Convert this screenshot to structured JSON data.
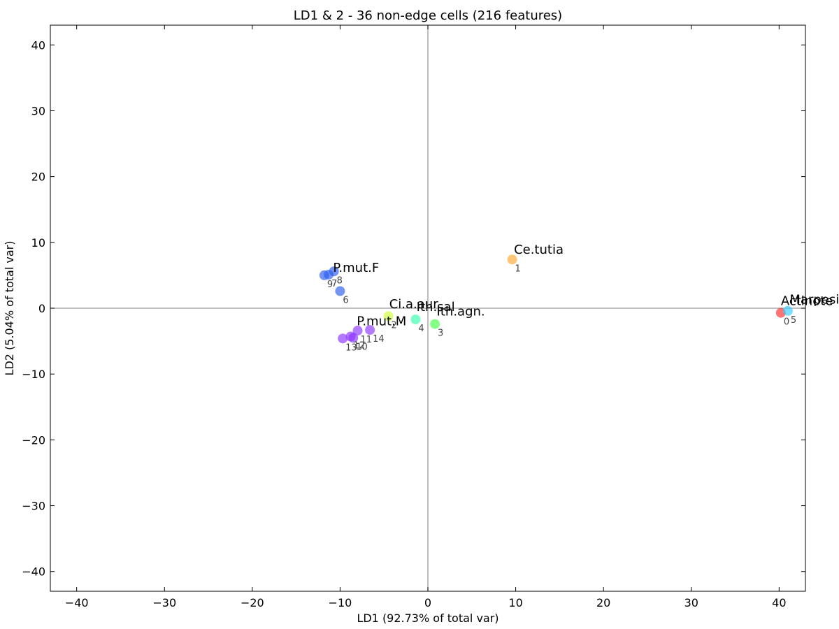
{
  "chart_data": {
    "type": "scatter",
    "title": "LD1 & 2 - 36 non-edge cells (216 features)",
    "xlabel": "LD1 (92.73% of total var)",
    "ylabel": "LD2 (5.04% of total var)",
    "xlim": [
      -43,
      43
    ],
    "ylim": [
      -43,
      43
    ],
    "xticks": [
      -40,
      -30,
      -20,
      -10,
      0,
      10,
      20,
      30,
      40
    ],
    "yticks": [
      -40,
      -30,
      -20,
      -10,
      0,
      10,
      20,
      30,
      40
    ],
    "tick_labels": {
      "x": [
        "−40",
        "−30",
        "−20",
        "−10",
        "0",
        "10",
        "20",
        "30",
        "40"
      ],
      "y": [
        "−40",
        "−30",
        "−20",
        "−10",
        "0",
        "10",
        "20",
        "30",
        "40"
      ]
    },
    "zero_lines": true,
    "grid": false,
    "groups": [
      {
        "name": "Actinote",
        "color": "#ff2a2a",
        "label_pos": [
          40.2,
          0.5
        ],
        "points": [
          {
            "id": "0",
            "x": 40.2,
            "y": -0.7
          }
        ]
      },
      {
        "name": "Ce.tutia",
        "color": "#ffa733",
        "label_pos": [
          9.8,
          8.3
        ],
        "points": [
          {
            "id": "1",
            "x": 9.6,
            "y": 7.4
          }
        ]
      },
      {
        "name": "Ci.a.aur",
        "color": "#ccff33",
        "label_pos": [
          -4.4,
          0.0
        ],
        "points": [
          {
            "id": "2",
            "x": -4.5,
            "y": -1.2
          }
        ]
      },
      {
        "name": "Ith.agn.",
        "color": "#44ff44",
        "label_pos": [
          1.0,
          -1.1
        ],
        "points": [
          {
            "id": "3",
            "x": 0.8,
            "y": -2.4
          }
        ]
      },
      {
        "name": "Ith.sal",
        "color": "#33ffaa",
        "label_pos": [
          -1.3,
          -0.4
        ],
        "points": [
          {
            "id": "4",
            "x": -1.4,
            "y": -1.7
          }
        ]
      },
      {
        "name": "Marpesia",
        "color": "#33ccff",
        "label_pos": [
          41.2,
          0.7
        ],
        "points": [
          {
            "id": "5",
            "x": 41.0,
            "y": -0.4
          }
        ]
      },
      {
        "name": "P.mut.F",
        "color": "#2a5aee",
        "label_pos": [
          -10.8,
          5.5
        ],
        "points": [
          {
            "id": "6",
            "x": -10.0,
            "y": 2.6
          },
          {
            "id": "7",
            "x": -11.3,
            "y": 5.1
          },
          {
            "id": "8",
            "x": -10.7,
            "y": 5.6
          },
          {
            "id": "9",
            "x": -11.8,
            "y": 5.0
          }
        ]
      },
      {
        "name": "P.mut.M",
        "color": "#8a33ff",
        "label_pos": [
          -8.1,
          -2.6
        ],
        "points": [
          {
            "id": "10",
            "x": -8.5,
            "y": -4.5
          },
          {
            "id": "11",
            "x": -8.0,
            "y": -3.4
          },
          {
            "id": "12",
            "x": -8.8,
            "y": -4.3
          },
          {
            "id": "13",
            "x": -9.7,
            "y": -4.6
          },
          {
            "id": "14",
            "x": -6.6,
            "y": -3.3
          }
        ]
      }
    ]
  }
}
